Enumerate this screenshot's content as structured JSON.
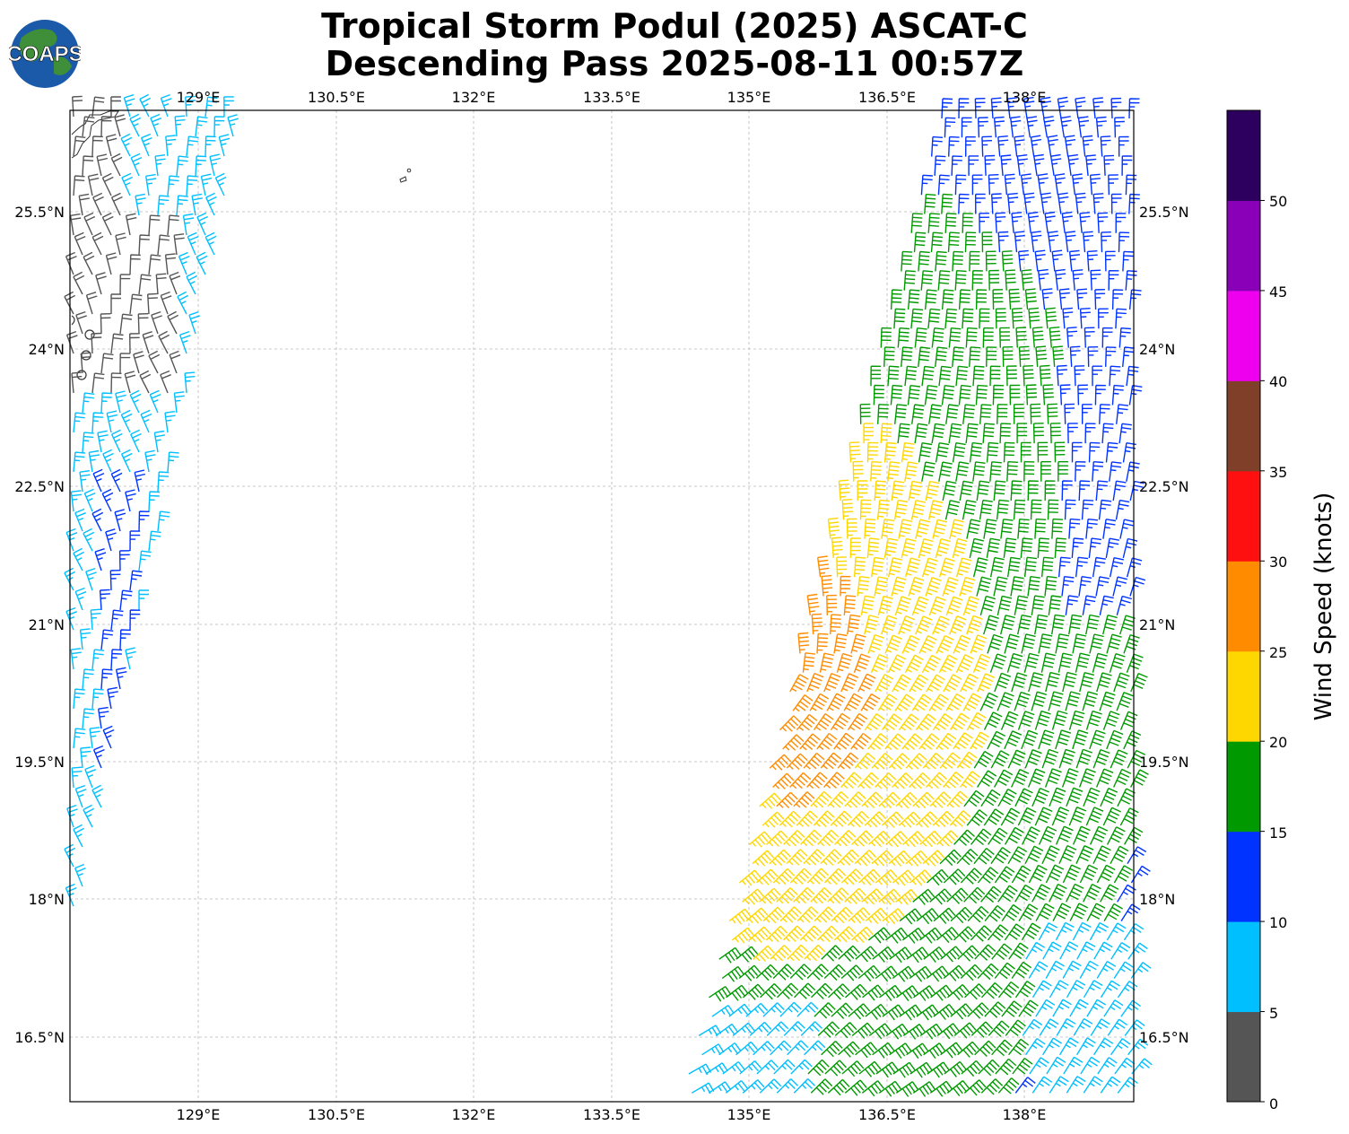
{
  "title_line1": "Tropical Storm Podul (2025) ASCAT-C",
  "title_line2": "Descending Pass 2025-08-11 00:57Z",
  "logo_text": "COAPS",
  "lon_ticks": [
    "129°E",
    "130.5°E",
    "132°E",
    "133.5°E",
    "135°E",
    "136.5°E",
    "138°E"
  ],
  "lat_ticks": [
    "25.5°N",
    "24°N",
    "22.5°N",
    "21°N",
    "19.5°N",
    "18°N",
    "16.5°N"
  ],
  "colorbar": {
    "label": "Wind Speed (knots)",
    "ticks": [
      "0",
      "5",
      "10",
      "15",
      "20",
      "25",
      "30",
      "35",
      "40",
      "45",
      "50"
    ],
    "bins": [
      {
        "range": "0-5",
        "color": "#555555"
      },
      {
        "range": "5-10",
        "color": "#00bfff"
      },
      {
        "range": "10-15",
        "color": "#0033ff"
      },
      {
        "range": "15-20",
        "color": "#009a00"
      },
      {
        "range": "20-25",
        "color": "#ffd700"
      },
      {
        "range": "25-30",
        "color": "#ff8c00"
      },
      {
        "range": "30-35",
        "color": "#ff1010"
      },
      {
        "range": "35-40",
        "color": "#7f3f28"
      },
      {
        "range": "40-45",
        "color": "#ee00ee"
      },
      {
        "range": "45-50",
        "color": "#8a00b8"
      },
      {
        "range": "50+",
        "color": "#2d0060"
      }
    ]
  }
}
